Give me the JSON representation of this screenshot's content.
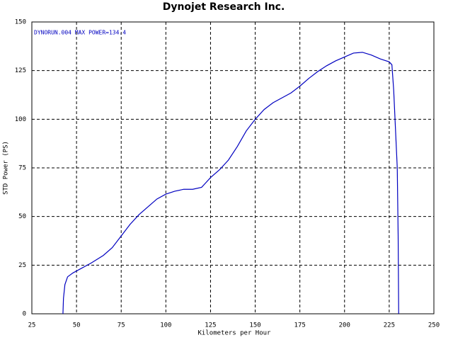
{
  "chart_data": {
    "type": "line",
    "title": "Dynojet  Research  Inc.",
    "annotation": "DYNORUN.004  MAX POWER=134.4",
    "x_label": "Kilometers per Hour",
    "y_label": "STD Power (PS)",
    "x": [
      42.4,
      42.7,
      43.5,
      45,
      48,
      52,
      58,
      65,
      70,
      75,
      80,
      85,
      90,
      95,
      100,
      105,
      110,
      115,
      120,
      122,
      125,
      130,
      135,
      140,
      145,
      150,
      155,
      160,
      165,
      170,
      175,
      180,
      185,
      190,
      195,
      200,
      205,
      210,
      215,
      220,
      225,
      226.5,
      227.5,
      228.5,
      229.5,
      230,
      230.3
    ],
    "series": [
      {
        "name": "DYNORUN.004",
        "color": "#0000c0",
        "values": [
          0,
          8,
          15,
          19,
          21,
          23,
          26,
          30,
          34,
          40,
          46,
          51,
          55,
          59,
          61.5,
          63,
          64,
          64,
          65,
          67,
          70,
          74,
          79,
          86,
          94,
          100,
          105,
          108.5,
          111,
          113.5,
          117,
          121,
          124.5,
          127.5,
          130,
          132,
          134,
          134.4,
          133,
          131,
          129.5,
          128,
          115,
          95,
          75,
          40,
          0
        ]
      }
    ],
    "xlim": [
      25,
      250
    ],
    "xticks": [
      25,
      50,
      75,
      100,
      125,
      150,
      175,
      200,
      225,
      250
    ],
    "ylim": [
      0,
      150
    ],
    "yticks": [
      0,
      25,
      50,
      75,
      100,
      125,
      150
    ],
    "grid": true
  }
}
